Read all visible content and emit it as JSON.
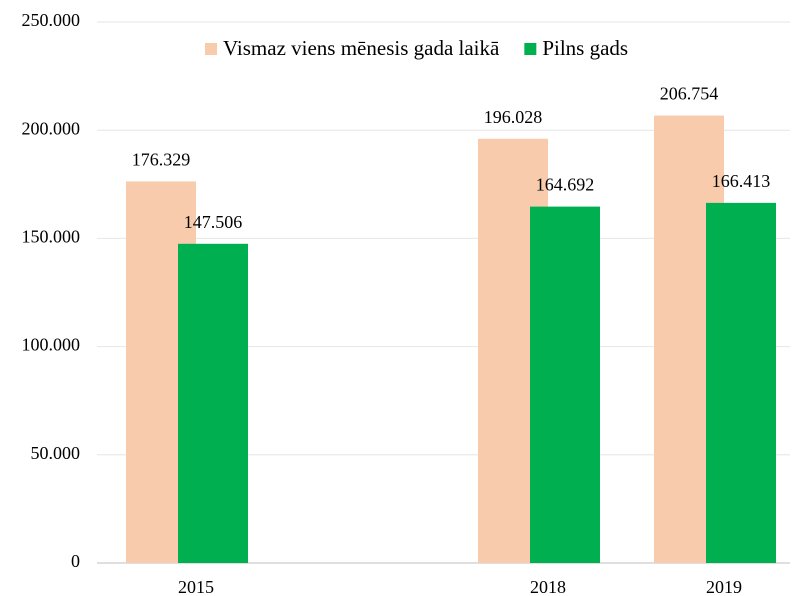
{
  "chart_data": {
    "type": "bar",
    "categories": [
      "2015",
      null,
      "2018",
      "2019"
    ],
    "series": [
      {
        "name": "Vismaz viens mēnesis gada laikā",
        "color": "#f8cbad",
        "values": [
          176329,
          null,
          196028,
          206754
        ],
        "value_labels": [
          "176.329",
          null,
          "196.028",
          "206.754"
        ]
      },
      {
        "name": "Pilns gads",
        "color": "#00b050",
        "values": [
          147506,
          null,
          164692,
          166413
        ],
        "value_labels": [
          "147.506",
          null,
          "164.692",
          "166.413"
        ]
      }
    ],
    "ylim": [
      0,
      250000
    ],
    "yticks": [
      0,
      {
        "value": 50000,
        "label": "50.000"
      },
      {
        "value": 100000,
        "label": "100.000"
      },
      {
        "value": 150000,
        "label": "150.000"
      },
      {
        "value": 200000,
        "label": "200.000"
      },
      {
        "value": 250000,
        "label": "250.000"
      }
    ],
    "grid": true,
    "legend": "top"
  }
}
